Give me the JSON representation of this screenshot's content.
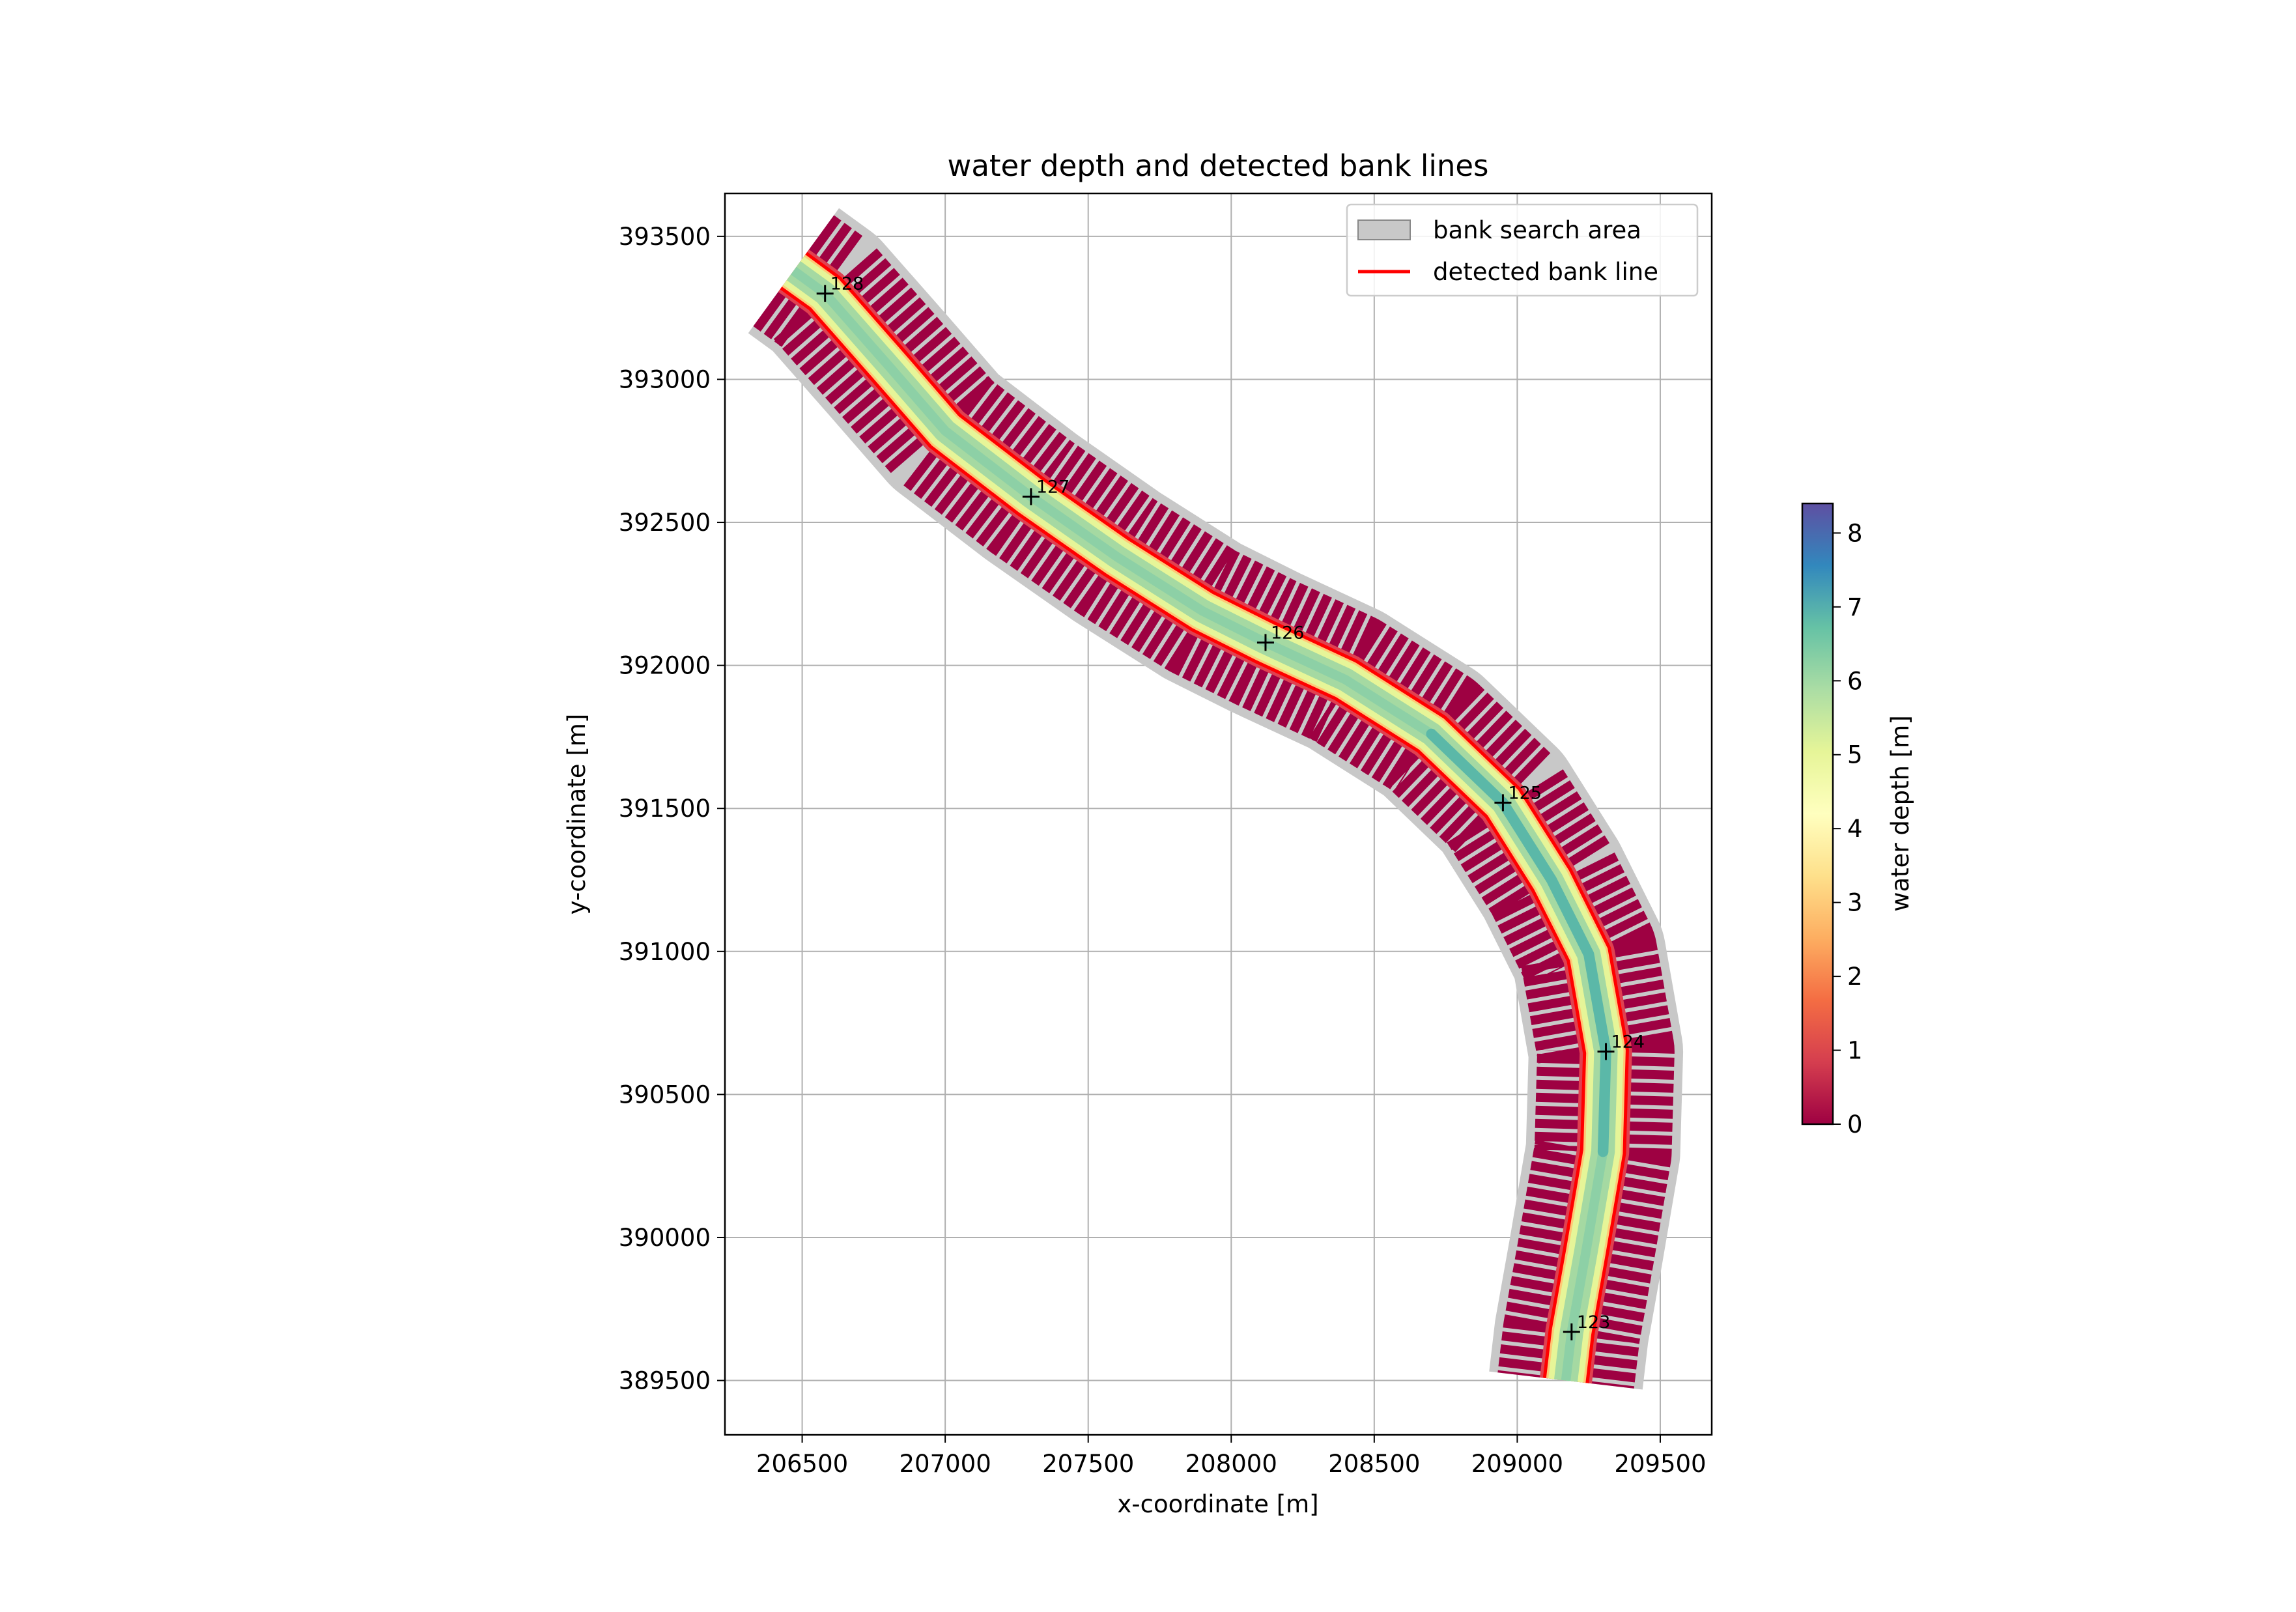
{
  "chart_data": {
    "type": "line",
    "title": "water depth and detected bank lines",
    "xlabel": "x-coordinate [m]",
    "ylabel": "y-coordinate [m]",
    "xlim": [
      206230,
      209680
    ],
    "ylim": [
      389310,
      393650
    ],
    "xticks": [
      206500,
      207000,
      207500,
      208000,
      208500,
      209000,
      209500
    ],
    "yticks": [
      389500,
      390000,
      390500,
      391000,
      391500,
      392000,
      392500,
      393000,
      393500
    ],
    "grid": true,
    "legend_position": "top-right",
    "legend": [
      {
        "label": "bank search area",
        "kind": "patch",
        "color": "#c8c8c8"
      },
      {
        "label": "detected bank line",
        "kind": "line",
        "color": "#ff0000"
      }
    ],
    "colorbar": {
      "label": "water depth [m]",
      "min": 0,
      "max": 8.4,
      "ticks": [
        0,
        1,
        2,
        3,
        4,
        5,
        6,
        7,
        8
      ],
      "colormap": "Spectral",
      "stops": [
        "#9e0142",
        "#d53e4f",
        "#f46d43",
        "#fdae61",
        "#fee08b",
        "#ffffbf",
        "#e6f598",
        "#abdda4",
        "#66c2a5",
        "#3288bd",
        "#5e4fa2"
      ]
    },
    "centerline": [
      [
        206470,
        393380
      ],
      [
        206580,
        393300
      ],
      [
        206800,
        393050
      ],
      [
        207000,
        392820
      ],
      [
        207300,
        392590
      ],
      [
        207600,
        392380
      ],
      [
        207900,
        392190
      ],
      [
        208120,
        392080
      ],
      [
        208400,
        391950
      ],
      [
        208700,
        391760
      ],
      [
        208950,
        391520
      ],
      [
        209120,
        391250
      ],
      [
        209250,
        390990
      ],
      [
        209310,
        390650
      ],
      [
        209300,
        390300
      ],
      [
        209240,
        389950
      ],
      [
        209190,
        389670
      ],
      [
        209170,
        389500
      ]
    ],
    "river_width_m": 150,
    "search_area_width_m": 540,
    "km_markers": [
      {
        "label": "128",
        "x": 206580,
        "y": 393300
      },
      {
        "label": "127",
        "x": 207300,
        "y": 392590
      },
      {
        "label": "126",
        "x": 208120,
        "y": 392080
      },
      {
        "label": "125",
        "x": 208950,
        "y": 391520
      },
      {
        "label": "124",
        "x": 209310,
        "y": 390650
      },
      {
        "label": "123",
        "x": 209190,
        "y": 389670
      }
    ],
    "bank_lines": [
      {
        "side": "left",
        "offset_m": 75
      },
      {
        "side": "right",
        "offset_m": -75
      }
    ]
  }
}
